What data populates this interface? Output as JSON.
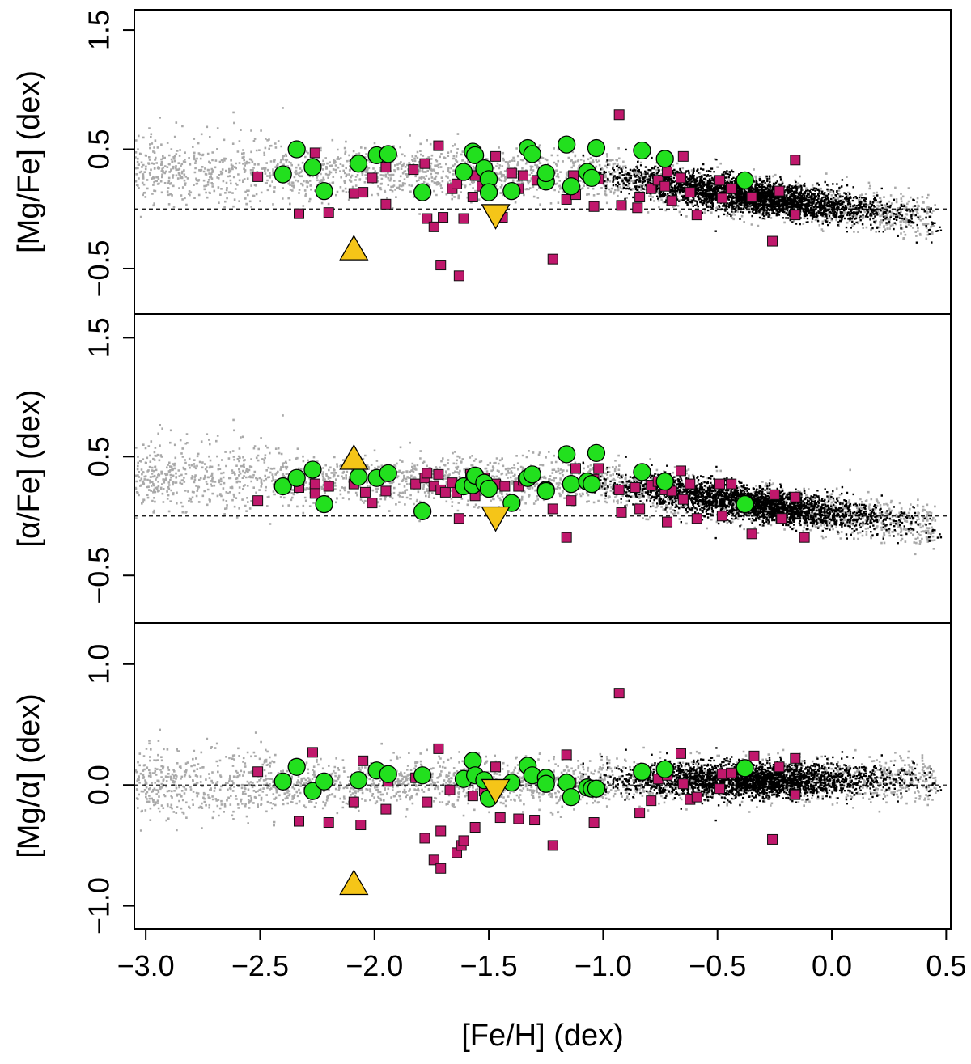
{
  "chart_data": {
    "type": "scatter",
    "layout": "three vertically stacked panels sharing the x axis",
    "xlabel": "[Fe/H] (dex)",
    "xlim": [
      -3.05,
      0.52
    ],
    "xticks": [
      -3.0,
      -2.5,
      -2.0,
      -1.5,
      -1.0,
      -0.5,
      0.0,
      0.5
    ],
    "xtick_labels": [
      "−3.0",
      "−2.5",
      "−2.0",
      "−1.5",
      "−1.0",
      "−0.5",
      "0.0",
      "0.5"
    ],
    "colors": {
      "background_gray": "#a9a9a9",
      "background_black": "#000000",
      "square": "#c0186c",
      "circle": "#22e01e",
      "triangle": "#f5c518",
      "outline": "#000000"
    },
    "panels": [
      {
        "id": "mgfe",
        "ylabel": "[Mg/Fe] (dex)",
        "ylim": [
          -0.88,
          1.67
        ],
        "yticks": [
          -0.5,
          0.5,
          1.5
        ],
        "ytick_labels": [
          "−0.5",
          "0.5",
          "1.5"
        ],
        "reference_line": 0.0,
        "squares": [
          [
            -2.51,
            0.27
          ],
          [
            -2.33,
            -0.04
          ],
          [
            -2.26,
            0.47
          ],
          [
            -2.2,
            -0.03
          ],
          [
            -2.09,
            0.13
          ],
          [
            -2.05,
            0.14
          ],
          [
            -2.01,
            0.26
          ],
          [
            -1.95,
            0.04
          ],
          [
            -1.95,
            0.35
          ],
          [
            -1.83,
            0.33
          ],
          [
            -1.78,
            0.38
          ],
          [
            -1.77,
            -0.08
          ],
          [
            -1.74,
            -0.15
          ],
          [
            -1.72,
            0.53
          ],
          [
            -1.71,
            -0.47
          ],
          [
            -1.7,
            -0.07
          ],
          [
            -1.66,
            0.17
          ],
          [
            -1.64,
            0.21
          ],
          [
            -1.63,
            -0.56
          ],
          [
            -1.61,
            -0.08
          ],
          [
            -1.57,
            0.1
          ],
          [
            -1.56,
            0.28
          ],
          [
            -1.53,
            0.19
          ],
          [
            -1.47,
            0.44
          ],
          [
            -1.44,
            -0.07
          ],
          [
            -1.4,
            0.3
          ],
          [
            -1.37,
            0.17
          ],
          [
            -1.35,
            0.28
          ],
          [
            -1.29,
            0.24
          ],
          [
            -1.22,
            -0.42
          ],
          [
            -1.16,
            0.08
          ],
          [
            -1.14,
            0.18
          ],
          [
            -1.13,
            0.28
          ],
          [
            -1.12,
            0.12
          ],
          [
            -1.04,
            0.02
          ],
          [
            -1.02,
            0.25
          ],
          [
            -0.93,
            0.79
          ],
          [
            -0.92,
            0.03
          ],
          [
            -0.85,
            0.01
          ],
          [
            -0.84,
            0.1
          ],
          [
            -0.79,
            0.17
          ],
          [
            -0.76,
            0.24
          ],
          [
            -0.73,
            0.19
          ],
          [
            -0.72,
            0.31
          ],
          [
            -0.7,
            0.07
          ],
          [
            -0.66,
            0.26
          ],
          [
            -0.65,
            0.44
          ],
          [
            -0.62,
            0.14
          ],
          [
            -0.59,
            -0.05
          ],
          [
            -0.49,
            0.24
          ],
          [
            -0.48,
            0.09
          ],
          [
            -0.44,
            0.17
          ],
          [
            -0.35,
            0.1
          ],
          [
            -0.26,
            -0.27
          ],
          [
            -0.23,
            0.15
          ],
          [
            -0.16,
            0.41
          ],
          [
            -0.16,
            -0.05
          ]
        ],
        "circles": [
          [
            -2.4,
            0.29
          ],
          [
            -2.34,
            0.5
          ],
          [
            -2.27,
            0.35
          ],
          [
            -2.22,
            0.15
          ],
          [
            -2.07,
            0.38
          ],
          [
            -1.99,
            0.45
          ],
          [
            -1.94,
            0.46
          ],
          [
            -1.79,
            0.14
          ],
          [
            -1.61,
            0.31
          ],
          [
            -1.57,
            0.48
          ],
          [
            -1.56,
            0.45
          ],
          [
            -1.52,
            0.34
          ],
          [
            -1.5,
            0.25
          ],
          [
            -1.5,
            0.14
          ],
          [
            -1.4,
            0.15
          ],
          [
            -1.33,
            0.51
          ],
          [
            -1.31,
            0.46
          ],
          [
            -1.25,
            0.23
          ],
          [
            -1.25,
            0.3
          ],
          [
            -1.16,
            0.54
          ],
          [
            -1.14,
            0.19
          ],
          [
            -1.07,
            0.31
          ],
          [
            -1.05,
            0.26
          ],
          [
            -1.03,
            0.51
          ],
          [
            -0.83,
            0.49
          ],
          [
            -0.73,
            0.42
          ],
          [
            -0.38,
            0.24
          ]
        ],
        "triangles_up": [
          [
            -2.09,
            -0.34
          ]
        ],
        "triangles_down": [
          [
            -1.47,
            -0.05
          ]
        ]
      },
      {
        "id": "alphafe",
        "ylabel": "[α/Fe] (dex)",
        "ylim": [
          -0.9,
          1.7
        ],
        "yticks": [
          -0.5,
          0.5,
          1.5
        ],
        "ytick_labels": [
          "−0.5",
          "0.5",
          "1.5"
        ],
        "reference_line": 0.0,
        "squares": [
          [
            -2.51,
            0.13
          ],
          [
            -2.33,
            0.24
          ],
          [
            -2.26,
            0.27
          ],
          [
            -2.26,
            0.19
          ],
          [
            -2.2,
            0.25
          ],
          [
            -2.07,
            0.41
          ],
          [
            -2.09,
            0.27
          ],
          [
            -2.04,
            0.2
          ],
          [
            -2.01,
            0.11
          ],
          [
            -1.95,
            0.21
          ],
          [
            -1.82,
            0.27
          ],
          [
            -1.78,
            0.32
          ],
          [
            -1.77,
            0.36
          ],
          [
            -1.74,
            0.25
          ],
          [
            -1.72,
            0.35
          ],
          [
            -1.71,
            0.22
          ],
          [
            -1.69,
            0.2
          ],
          [
            -1.66,
            0.28
          ],
          [
            -1.64,
            0.2
          ],
          [
            -1.63,
            -0.02
          ],
          [
            -1.61,
            0.25
          ],
          [
            -1.58,
            0.35
          ],
          [
            -1.56,
            0.17
          ],
          [
            -1.52,
            0.32
          ],
          [
            -1.47,
            0.27
          ],
          [
            -1.43,
            0.25
          ],
          [
            -1.37,
            0.25
          ],
          [
            -1.35,
            0.3
          ],
          [
            -1.3,
            0.36
          ],
          [
            -1.22,
            0.06
          ],
          [
            -1.16,
            -0.18
          ],
          [
            -1.14,
            0.13
          ],
          [
            -1.12,
            0.4
          ],
          [
            -1.04,
            0.31
          ],
          [
            -1.02,
            0.4
          ],
          [
            -0.93,
            0.22
          ],
          [
            -0.92,
            0.03
          ],
          [
            -0.86,
            0.24
          ],
          [
            -0.84,
            0.06
          ],
          [
            -0.79,
            0.26
          ],
          [
            -0.76,
            0.29
          ],
          [
            -0.73,
            0.22
          ],
          [
            -0.72,
            -0.05
          ],
          [
            -0.7,
            0.21
          ],
          [
            -0.66,
            0.38
          ],
          [
            -0.65,
            0.14
          ],
          [
            -0.62,
            0.27
          ],
          [
            -0.59,
            -0.02
          ],
          [
            -0.49,
            0.27
          ],
          [
            -0.48,
            0.0
          ],
          [
            -0.44,
            0.27
          ],
          [
            -0.35,
            -0.15
          ],
          [
            -0.25,
            0.18
          ],
          [
            -0.22,
            -0.02
          ],
          [
            -0.16,
            0.16
          ],
          [
            -0.12,
            -0.18
          ]
        ],
        "circles": [
          [
            -2.4,
            0.25
          ],
          [
            -2.34,
            0.32
          ],
          [
            -2.27,
            0.39
          ],
          [
            -2.22,
            0.1
          ],
          [
            -2.07,
            0.33
          ],
          [
            -1.99,
            0.32
          ],
          [
            -1.94,
            0.36
          ],
          [
            -1.79,
            0.04
          ],
          [
            -1.61,
            0.25
          ],
          [
            -1.57,
            0.26
          ],
          [
            -1.56,
            0.34
          ],
          [
            -1.52,
            0.28
          ],
          [
            -1.5,
            0.23
          ],
          [
            -1.4,
            0.11
          ],
          [
            -1.33,
            0.32
          ],
          [
            -1.31,
            0.35
          ],
          [
            -1.25,
            0.22
          ],
          [
            -1.25,
            0.21
          ],
          [
            -1.16,
            0.52
          ],
          [
            -1.14,
            0.27
          ],
          [
            -1.07,
            0.29
          ],
          [
            -1.05,
            0.27
          ],
          [
            -1.03,
            0.53
          ],
          [
            -0.83,
            0.37
          ],
          [
            -0.73,
            0.29
          ],
          [
            -0.38,
            0.1
          ]
        ],
        "triangles_up": [
          [
            -2.09,
            0.48
          ]
        ],
        "triangles_down": [
          [
            -1.47,
            -0.01
          ]
        ]
      },
      {
        "id": "mgalpha",
        "ylabel": "[Mg/α] (dex)",
        "ylim": [
          -1.19,
          1.34
        ],
        "yticks": [
          -1.0,
          0.0,
          1.0
        ],
        "ytick_labels": [
          "−1.0",
          "0.0",
          "1.0"
        ],
        "reference_line": 0.0,
        "squares": [
          [
            -2.51,
            0.11
          ],
          [
            -2.33,
            -0.3
          ],
          [
            -2.27,
            0.27
          ],
          [
            -2.2,
            -0.31
          ],
          [
            -2.09,
            -0.14
          ],
          [
            -2.06,
            -0.33
          ],
          [
            -2.05,
            0.2
          ],
          [
            -1.95,
            -0.2
          ],
          [
            -1.94,
            0.03
          ],
          [
            -1.82,
            0.06
          ],
          [
            -1.78,
            -0.44
          ],
          [
            -1.77,
            -0.14
          ],
          [
            -1.74,
            -0.62
          ],
          [
            -1.72,
            0.3
          ],
          [
            -1.71,
            -0.69
          ],
          [
            -1.71,
            -0.38
          ],
          [
            -1.67,
            -0.04
          ],
          [
            -1.64,
            -0.56
          ],
          [
            -1.62,
            -0.5
          ],
          [
            -1.61,
            -0.46
          ],
          [
            -1.57,
            -0.09
          ],
          [
            -1.56,
            -0.35
          ],
          [
            -1.52,
            -0.05
          ],
          [
            -1.47,
            0.15
          ],
          [
            -1.45,
            -0.27
          ],
          [
            -1.37,
            -0.28
          ],
          [
            -1.3,
            -0.29
          ],
          [
            -1.22,
            -0.5
          ],
          [
            -1.16,
            0.25
          ],
          [
            -1.14,
            0.02
          ],
          [
            -1.04,
            -0.31
          ],
          [
            -0.93,
            0.76
          ],
          [
            -0.84,
            -0.23
          ],
          [
            -0.79,
            -0.13
          ],
          [
            -0.76,
            0.05
          ],
          [
            -0.72,
            0.08
          ],
          [
            -0.66,
            0.26
          ],
          [
            -0.65,
            0.01
          ],
          [
            -0.62,
            -0.12
          ],
          [
            -0.59,
            -0.1
          ],
          [
            -0.49,
            -0.03
          ],
          [
            -0.48,
            0.09
          ],
          [
            -0.44,
            0.1
          ],
          [
            -0.34,
            0.24
          ],
          [
            -0.26,
            -0.45
          ],
          [
            -0.23,
            0.15
          ],
          [
            -0.16,
            0.22
          ],
          [
            -0.16,
            -0.08
          ]
        ],
        "circles": [
          [
            -2.4,
            0.03
          ],
          [
            -2.34,
            0.15
          ],
          [
            -2.27,
            -0.05
          ],
          [
            -2.22,
            0.03
          ],
          [
            -2.07,
            0.04
          ],
          [
            -1.99,
            0.12
          ],
          [
            -1.94,
            0.09
          ],
          [
            -1.79,
            0.08
          ],
          [
            -1.61,
            0.05
          ],
          [
            -1.57,
            0.2
          ],
          [
            -1.56,
            0.08
          ],
          [
            -1.52,
            0.04
          ],
          [
            -1.5,
            -0.11
          ],
          [
            -1.4,
            0.02
          ],
          [
            -1.33,
            0.16
          ],
          [
            -1.31,
            0.08
          ],
          [
            -1.25,
            0.06
          ],
          [
            -1.25,
            0.01
          ],
          [
            -1.16,
            0.02
          ],
          [
            -1.14,
            -0.1
          ],
          [
            -1.07,
            -0.02
          ],
          [
            -1.05,
            -0.03
          ],
          [
            -1.03,
            -0.03
          ],
          [
            -0.83,
            0.11
          ],
          [
            -0.73,
            0.13
          ],
          [
            -0.38,
            0.14
          ]
        ],
        "triangles_up": [
          [
            -2.09,
            -0.82
          ]
        ],
        "triangles_down": [
          [
            -1.47,
            -0.04
          ]
        ]
      }
    ]
  }
}
